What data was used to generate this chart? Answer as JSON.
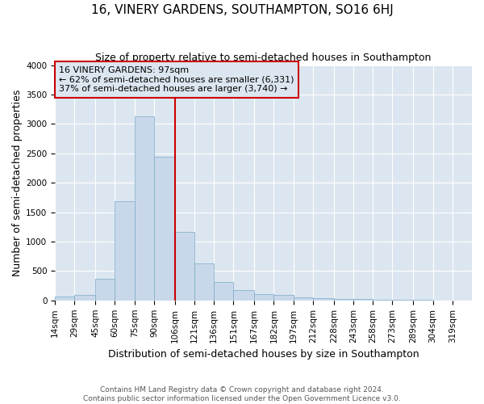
{
  "title": "16, VINERY GARDENS, SOUTHAMPTON, SO16 6HJ",
  "subtitle": "Size of property relative to semi-detached houses in Southampton",
  "xlabel": "Distribution of semi-detached houses by size in Southampton",
  "ylabel": "Number of semi-detached properties",
  "footnote1": "Contains HM Land Registry data © Crown copyright and database right 2024.",
  "footnote2": "Contains public sector information licensed under the Open Government Licence v3.0.",
  "annotation_line1": "16 VINERY GARDENS: 97sqm",
  "annotation_line2": "← 62% of semi-detached houses are smaller (6,331)",
  "annotation_line3": "37% of semi-detached houses are larger (3,740) →",
  "bar_color": "#c8d8ea",
  "bar_edge_color": "#7aaac8",
  "vline_color": "#cc0000",
  "annotation_box_edge": "#cc0000",
  "fig_background": "#ffffff",
  "ax_background": "#dce6f0",
  "grid_color": "#ffffff",
  "categories": [
    "14sqm",
    "29sqm",
    "45sqm",
    "60sqm",
    "75sqm",
    "90sqm",
    "106sqm",
    "121sqm",
    "136sqm",
    "151sqm",
    "167sqm",
    "182sqm",
    "197sqm",
    "212sqm",
    "228sqm",
    "243sqm",
    "258sqm",
    "273sqm",
    "289sqm",
    "304sqm",
    "319sqm"
  ],
  "bin_left_edges": [
    14,
    29,
    45,
    60,
    75,
    90,
    106,
    121,
    136,
    151,
    167,
    182,
    197,
    212,
    228,
    243,
    258,
    273,
    289,
    304,
    319
  ],
  "bin_widths": [
    15,
    16,
    15,
    15,
    15,
    16,
    15,
    15,
    15,
    16,
    15,
    15,
    15,
    16,
    15,
    15,
    15,
    16,
    15,
    15,
    15
  ],
  "values": [
    60,
    100,
    370,
    1680,
    3130,
    2440,
    1170,
    630,
    320,
    170,
    110,
    90,
    55,
    45,
    30,
    20,
    10,
    5,
    5,
    3,
    2
  ],
  "ylim": [
    0,
    4000
  ],
  "yticks": [
    0,
    500,
    1000,
    1500,
    2000,
    2500,
    3000,
    3500,
    4000
  ],
  "vline_x": 106,
  "title_fontsize": 11,
  "subtitle_fontsize": 9,
  "axis_label_fontsize": 9,
  "tick_fontsize": 7.5,
  "footnote_fontsize": 6.5
}
